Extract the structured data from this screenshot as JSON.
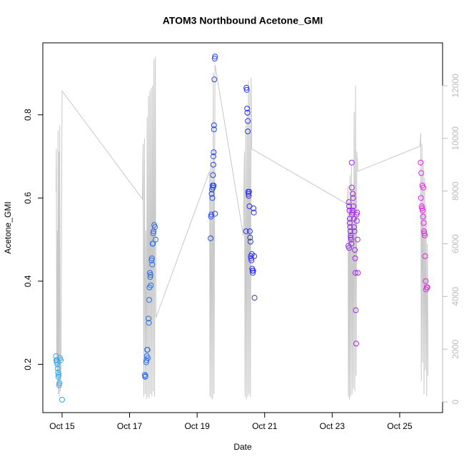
{
  "chart_data": {
    "type": "scatter",
    "title": "ATOM3 Northbound Acetone_GMI",
    "x_label": "Date",
    "y_label": "Acetone_GMI",
    "xlim": [
      14.43,
      26.27
    ],
    "xticks": [
      {
        "value": 15,
        "label": "Oct 15"
      },
      {
        "value": 17,
        "label": "Oct 17"
      },
      {
        "value": 19,
        "label": "Oct 19"
      },
      {
        "value": 21,
        "label": "Oct 21"
      },
      {
        "value": 23,
        "label": "Oct 23"
      },
      {
        "value": 25,
        "label": "Oct 25"
      }
    ],
    "ylim": [
      0.084,
      0.973
    ],
    "yticks": [
      0.2,
      0.4,
      0.6,
      0.8
    ],
    "y2lim": [
      -406,
      13625
    ],
    "y2ticks": [
      0,
      2000,
      4000,
      6000,
      8000,
      10000,
      12000
    ],
    "color_ramp": [
      "#33aaee",
      "#2233ee",
      "#ee22ee"
    ],
    "points": {
      "x": [
        14.82,
        14.83,
        14.84,
        14.85,
        14.86,
        14.87,
        14.88,
        14.89,
        14.9,
        14.91,
        14.92,
        14.94,
        14.96,
        15.0,
        17.45,
        17.46,
        17.47,
        17.49,
        17.5,
        17.51,
        17.52,
        17.53,
        17.54,
        17.56,
        17.57,
        17.58,
        17.59,
        17.6,
        17.61,
        17.62,
        17.63,
        17.65,
        17.66,
        17.67,
        17.68,
        17.69,
        17.7,
        17.71,
        17.73,
        17.75,
        17.77,
        19.4,
        19.41,
        19.42,
        19.43,
        19.44,
        19.45,
        19.46,
        19.47,
        19.47,
        19.48,
        19.48,
        19.49,
        19.49,
        19.5,
        19.5,
        19.51,
        19.52,
        19.53,
        19.53,
        20.45,
        20.46,
        20.47,
        20.48,
        20.49,
        20.5,
        20.5,
        20.51,
        20.52,
        20.53,
        20.54,
        20.55,
        20.56,
        20.57,
        20.58,
        20.59,
        20.6,
        20.61,
        20.62,
        20.63,
        20.64,
        20.65,
        20.66,
        20.67,
        20.68,
        20.69,
        20.7,
        23.48,
        23.49,
        23.5,
        23.5,
        23.51,
        23.52,
        23.52,
        23.53,
        23.54,
        23.55,
        23.55,
        23.56,
        23.57,
        23.58,
        23.58,
        23.59,
        23.6,
        23.6,
        23.61,
        23.62,
        23.63,
        23.64,
        23.65,
        23.66,
        23.67,
        23.68,
        23.69,
        23.7,
        23.71,
        23.72,
        23.73,
        23.74,
        23.75,
        23.76,
        25.62,
        25.63,
        25.64,
        25.65,
        25.66,
        25.67,
        25.68,
        25.69,
        25.7,
        25.71,
        25.72,
        25.73,
        25.74,
        25.75,
        25.77,
        25.78,
        25.8,
        25.82
      ],
      "values": [
        0.22,
        0.21,
        0.205,
        0.21,
        0.2,
        0.19,
        0.18,
        0.17,
        0.175,
        0.15,
        0.155,
        0.215,
        0.21,
        0.115,
        0.175,
        0.17,
        0.172,
        0.205,
        0.21,
        0.22,
        0.235,
        0.235,
        0.215,
        0.31,
        0.3,
        0.355,
        0.385,
        0.42,
        0.41,
        0.415,
        0.39,
        0.45,
        0.455,
        0.44,
        0.49,
        0.49,
        0.515,
        0.52,
        0.535,
        0.53,
        0.5,
        0.503,
        0.555,
        0.56,
        0.61,
        0.62,
        0.6,
        0.63,
        0.625,
        0.655,
        0.68,
        0.7,
        0.71,
        0.63,
        0.765,
        0.775,
        0.885,
        0.935,
        0.94,
        0.562,
        0.52,
        0.865,
        0.86,
        0.815,
        0.805,
        0.785,
        0.76,
        0.615,
        0.61,
        0.605,
        0.615,
        0.58,
        0.52,
        0.505,
        0.495,
        0.46,
        0.455,
        0.45,
        0.465,
        0.43,
        0.425,
        0.42,
        0.425,
        0.575,
        0.565,
        0.46,
        0.36,
        0.485,
        0.59,
        0.58,
        0.48,
        0.57,
        0.55,
        0.54,
        0.53,
        0.52,
        0.51,
        0.505,
        0.5,
        0.49,
        0.625,
        0.685,
        0.56,
        0.565,
        0.57,
        0.61,
        0.6,
        0.58,
        0.55,
        0.53,
        0.52,
        0.475,
        0.455,
        0.42,
        0.33,
        0.25,
        0.56,
        0.545,
        0.565,
        0.5,
        0.42,
        0.685,
        0.6,
        0.66,
        0.58,
        0.575,
        0.63,
        0.57,
        0.555,
        0.625,
        0.54,
        0.52,
        0.515,
        0.51,
        0.46,
        0.4,
        0.38,
        0.385,
        0.385
      ]
    },
    "line": {
      "color": "#c8c8c8",
      "axis": "y2",
      "x": [
        14.82,
        14.83,
        14.84,
        14.85,
        14.86,
        14.87,
        14.88,
        14.89,
        14.9,
        14.91,
        14.92,
        14.93,
        14.95,
        14.97,
        15.0,
        17.38,
        17.4,
        17.42,
        17.44,
        17.46,
        17.48,
        17.5,
        17.52,
        17.54,
        17.56,
        17.58,
        17.6,
        17.62,
        17.64,
        17.66,
        17.68,
        17.7,
        17.72,
        17.74,
        17.76,
        17.78,
        19.37,
        19.38,
        19.4,
        19.42,
        19.44,
        19.46,
        19.48,
        19.5,
        19.53,
        20.37,
        20.4,
        20.42,
        20.44,
        20.46,
        20.48,
        20.5,
        20.52,
        20.54,
        20.56,
        20.58,
        20.6,
        20.62,
        23.45,
        23.47,
        23.48,
        23.5,
        23.51,
        23.53,
        23.55,
        23.57,
        23.59,
        23.61,
        23.63,
        23.65,
        23.67,
        23.69,
        23.71,
        23.73,
        23.76,
        25.6,
        25.62,
        25.64,
        25.66,
        25.68,
        25.7,
        25.72,
        25.74,
        25.76,
        25.78,
        25.8,
        25.82,
        25.84
      ],
      "values": [
        8000,
        9600,
        2000,
        1200,
        6500,
        600,
        10300,
        300,
        800,
        9500,
        200,
        10500,
        400,
        1500,
        11800,
        7700,
        9800,
        200,
        10000,
        300,
        6500,
        100,
        10800,
        200,
        11600,
        150,
        11800,
        300,
        11900,
        200,
        12000,
        400,
        13000,
        200,
        13100,
        3200,
        8750,
        200,
        9200,
        150,
        9000,
        100,
        12500,
        300,
        12800,
        6300,
        9500,
        200,
        10500,
        100,
        11000,
        200,
        12200,
        300,
        11800,
        200,
        12300,
        9600,
        7500,
        8200,
        200,
        7600,
        100,
        8600,
        200,
        9000,
        300,
        8000,
        500,
        11000,
        400,
        12000,
        1000,
        9500,
        8750,
        9700,
        10200,
        800,
        9800,
        1500,
        9000,
        300,
        8500,
        1200,
        7500,
        200,
        6000,
        1000
      ]
    }
  }
}
